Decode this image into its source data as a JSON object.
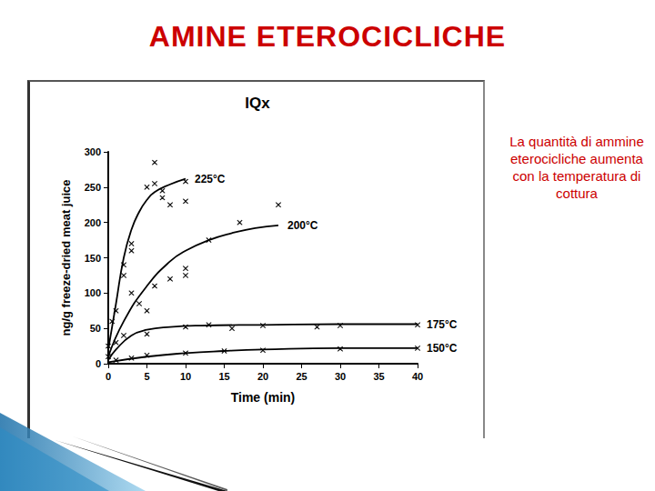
{
  "slide": {
    "title": "AMINE ETEROCICLICHE",
    "note": "La quantità di ammine eterocicliche aumenta con la temperatura di cottura"
  },
  "chart_data": {
    "type": "line",
    "title": "IQx",
    "x_label": "Time (min)",
    "y_label": "ng/g freeze-dried meat juice",
    "xlim": [
      0,
      40
    ],
    "xticks": [
      0,
      5,
      10,
      15,
      20,
      25,
      30,
      35,
      40
    ],
    "ylim": [
      0,
      300
    ],
    "yticks": [
      0,
      50,
      100,
      150,
      200,
      250,
      300
    ],
    "grid": false,
    "series": [
      {
        "name": "225°C",
        "color": "#000000",
        "line_style": "solid",
        "x": [
          0,
          1,
          2,
          3,
          4,
          5,
          6,
          8,
          10
        ],
        "values": [
          20,
          85,
          150,
          190,
          215,
          232,
          243,
          254,
          262
        ],
        "measured": {
          "marker": "x",
          "x": [
            0.5,
            1,
            2,
            2,
            3,
            3,
            5,
            6,
            6,
            7,
            7,
            8,
            10,
            10
          ],
          "values": [
            60,
            75,
            125,
            140,
            160,
            170,
            250,
            285,
            255,
            245,
            235,
            225,
            230,
            258
          ]
        }
      },
      {
        "name": "200°C",
        "color": "#000000",
        "line_style": "solid",
        "x": [
          0,
          2,
          5,
          8,
          10,
          13,
          16,
          19,
          22
        ],
        "values": [
          10,
          60,
          110,
          145,
          160,
          175,
          185,
          192,
          196
        ],
        "measured": {
          "marker": "x",
          "x": [
            1,
            2,
            3,
            4,
            5,
            6,
            8,
            10,
            10,
            13,
            17,
            22
          ],
          "values": [
            30,
            40,
            100,
            85,
            75,
            110,
            120,
            125,
            135,
            175,
            200,
            225
          ]
        }
      },
      {
        "name": "175°C",
        "color": "#000000",
        "line_style": "solid",
        "x": [
          0,
          1,
          3,
          5,
          8,
          12,
          20,
          30,
          40
        ],
        "values": [
          5,
          20,
          40,
          48,
          52,
          54,
          55,
          56,
          56
        ],
        "measured": {
          "marker": "x",
          "x": [
            0,
            5,
            10,
            13,
            16,
            20,
            27,
            30,
            40
          ],
          "values": [
            25,
            42,
            52,
            55,
            50,
            54,
            52,
            54,
            55
          ]
        }
      },
      {
        "name": "150°C",
        "color": "#000000",
        "line_style": "solid",
        "x": [
          0,
          5,
          10,
          15,
          20,
          30,
          40
        ],
        "values": [
          2,
          10,
          15,
          18,
          20,
          22,
          22
        ],
        "measured": {
          "marker": "x",
          "x": [
            0,
            1,
            3,
            5,
            10,
            15,
            20,
            30,
            40
          ],
          "values": [
            10,
            5,
            8,
            12,
            15,
            18,
            19,
            21,
            22
          ]
        }
      }
    ]
  }
}
